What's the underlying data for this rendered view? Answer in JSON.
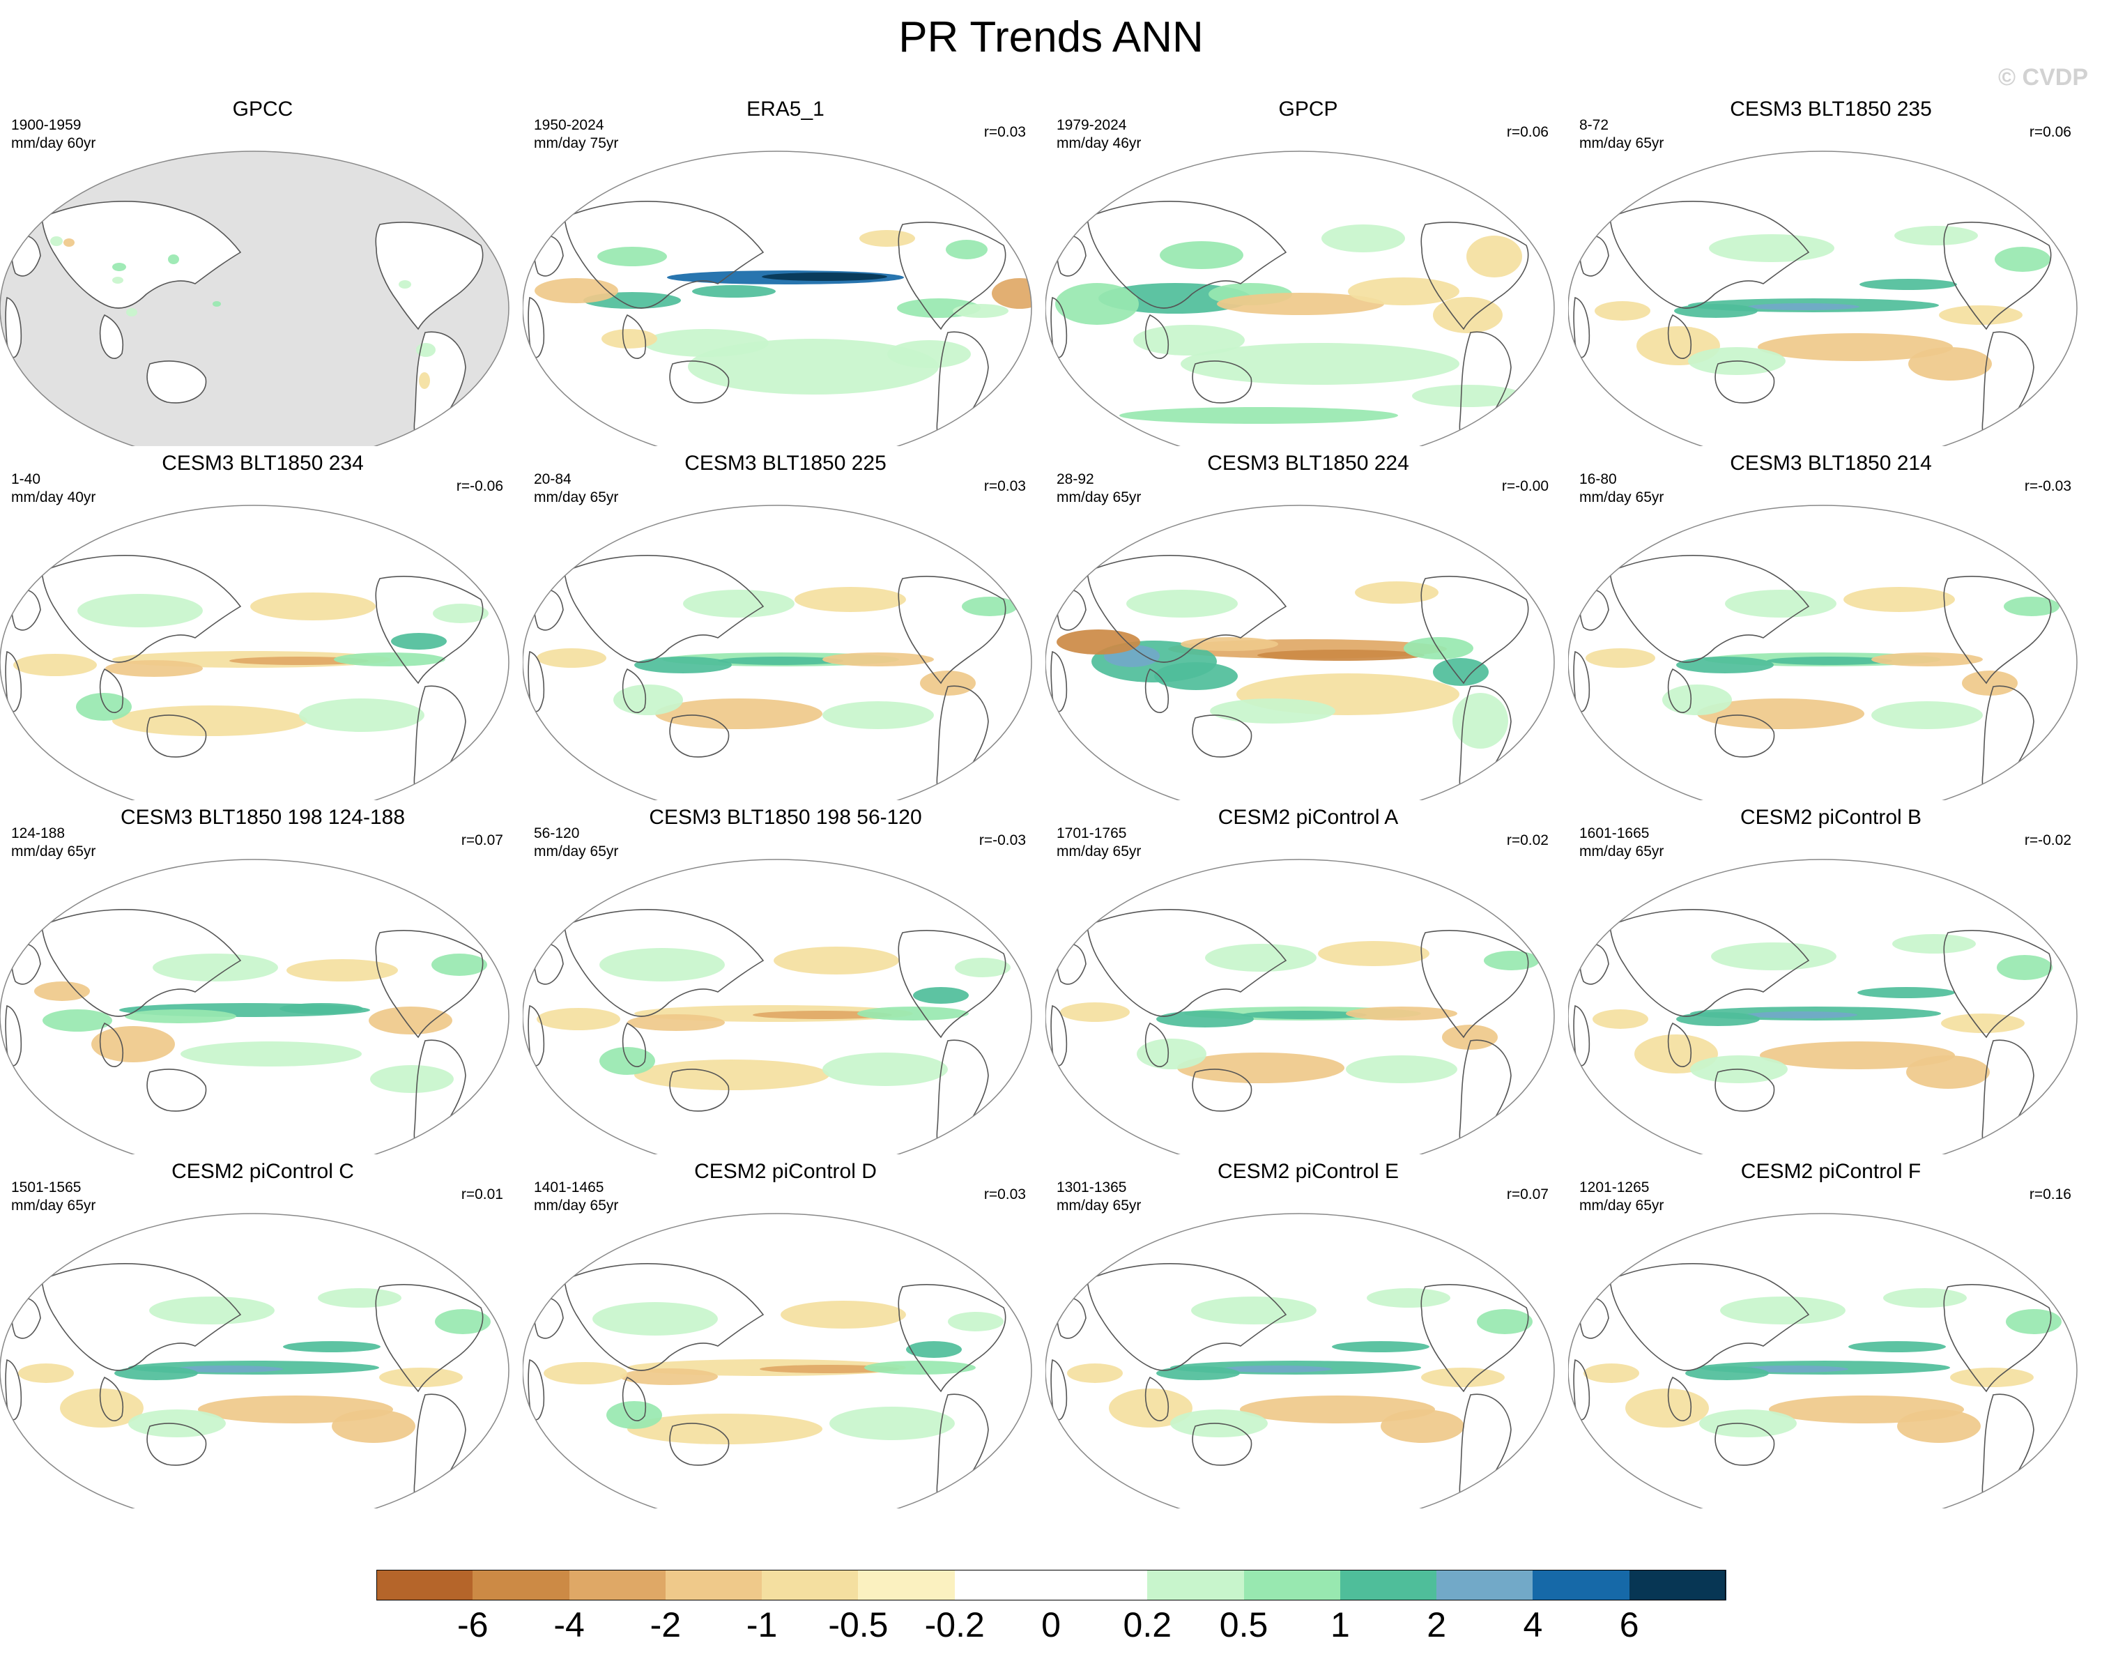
{
  "title": "PR Trends ANN",
  "watermark": "© CVDP",
  "panels": [
    {
      "title": "GPCC",
      "period": "1900-1959",
      "units": "mm/day 60yr",
      "corr": "",
      "style": "gpcc"
    },
    {
      "title": "ERA5_1",
      "period": "1950-2024",
      "units": "mm/day 75yr",
      "corr": "r=0.03",
      "style": "era5"
    },
    {
      "title": "GPCP",
      "period": "1979-2024",
      "units": "mm/day 46yr",
      "corr": "r=0.06",
      "style": "gpcp"
    },
    {
      "title": "CESM3 BLT1850 235",
      "period": "8-72",
      "units": "mm/day 65yr",
      "corr": "r=0.06",
      "style": "wet"
    },
    {
      "title": "CESM3 BLT1850 234",
      "period": "1-40",
      "units": "mm/day 40yr",
      "corr": "r=-0.06",
      "style": "dry"
    },
    {
      "title": "CESM3 BLT1850 225",
      "period": "20-84",
      "units": "mm/day 65yr",
      "corr": "r=0.03",
      "style": "mixed"
    },
    {
      "title": "CESM3 BLT1850 224",
      "period": "28-92",
      "units": "mm/day 65yr",
      "corr": "r=-0.00",
      "style": "strongdry"
    },
    {
      "title": "CESM3 BLT1850 214",
      "period": "16-80",
      "units": "mm/day 65yr",
      "corr": "r=-0.03",
      "style": "mixed"
    },
    {
      "title": "CESM3 BLT1850 198 124-188",
      "period": "124-188",
      "units": "mm/day 65yr",
      "corr": "r=0.07",
      "style": "mixed2"
    },
    {
      "title": "CESM3 BLT1850 198 56-120",
      "period": "56-120",
      "units": "mm/day 65yr",
      "corr": "r=-0.03",
      "style": "dry"
    },
    {
      "title": "CESM2 piControl A",
      "period": "1701-1765",
      "units": "mm/day 65yr",
      "corr": "r=0.02",
      "style": "mixed"
    },
    {
      "title": "CESM2 piControl B",
      "period": "1601-1665",
      "units": "mm/day 65yr",
      "corr": "r=-0.02",
      "style": "wet"
    },
    {
      "title": "CESM2 piControl C",
      "period": "1501-1565",
      "units": "mm/day 65yr",
      "corr": "r=0.01",
      "style": "wet"
    },
    {
      "title": "CESM2 piControl D",
      "period": "1401-1465",
      "units": "mm/day 65yr",
      "corr": "r=0.03",
      "style": "dry"
    },
    {
      "title": "CESM2 piControl E",
      "period": "1301-1365",
      "units": "mm/day 65yr",
      "corr": "r=0.07",
      "style": "wet"
    },
    {
      "title": "CESM2 piControl F",
      "period": "1201-1265",
      "units": "mm/day 65yr",
      "corr": "r=0.16",
      "style": "wet"
    }
  ],
  "colorbar": {
    "colors": [
      "#b5652a",
      "#cc8a45",
      "#dfa866",
      "#efc98a",
      "#f4dfa0",
      "#fbf1c0",
      "#ffffff",
      "#ffffff",
      "#c8f5cc",
      "#98e8b0",
      "#4fbe9a",
      "#72a9c8",
      "#1669a8",
      "#073654"
    ],
    "labels": [
      "-6",
      "-4",
      "-2",
      "-1",
      "-0.5",
      "-0.2",
      "0",
      "0.2",
      "0.5",
      "1",
      "2",
      "4",
      "6"
    ],
    "land_mask_color": "#e1e1e1"
  }
}
